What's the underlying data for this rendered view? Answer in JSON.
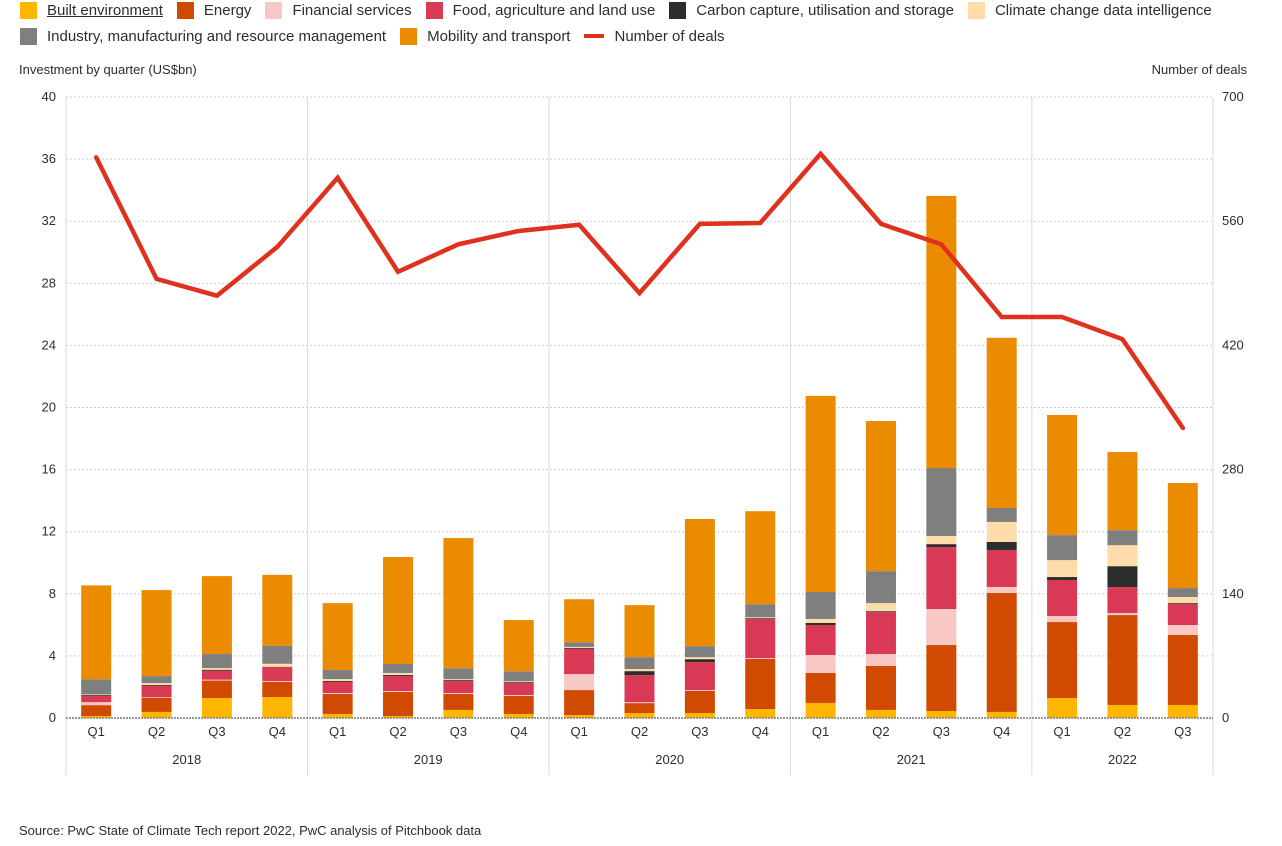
{
  "chart_data": {
    "type": "bar",
    "subtype": "stacked-bar-with-line",
    "left_axis_title": "Investment by quarter (US$bn)",
    "right_axis_title": "Number of deals",
    "ylim": [
      0,
      40
    ],
    "yticks": [
      0,
      4,
      8,
      12,
      16,
      20,
      24,
      28,
      32,
      36,
      40
    ],
    "y2lim": [
      0,
      700
    ],
    "y2ticks": [
      0,
      140,
      280,
      420,
      560,
      700
    ],
    "grid": true,
    "legend_placement": "top",
    "years": [
      "2018",
      "2019",
      "2020",
      "2021",
      "2022"
    ],
    "year_quarter_counts": [
      4,
      4,
      4,
      4,
      3
    ],
    "categories": [
      "Q1",
      "Q2",
      "Q3",
      "Q4",
      "Q1",
      "Q2",
      "Q3",
      "Q4",
      "Q1",
      "Q2",
      "Q3",
      "Q4",
      "Q1",
      "Q2",
      "Q3",
      "Q4",
      "Q1",
      "Q2",
      "Q3"
    ],
    "series": [
      {
        "name": "Built environment",
        "color": "#FFB600",
        "values": [
          0.13,
          0.39,
          1.29,
          1.35,
          0.26,
          0.13,
          0.52,
          0.26,
          0.19,
          0.32,
          0.32,
          0.58,
          0.97,
          0.52,
          0.45,
          0.39,
          1.29,
          0.84,
          0.84
        ]
      },
      {
        "name": "Energy",
        "color": "#D04A02",
        "values": [
          0.7,
          0.92,
          1.12,
          0.97,
          1.29,
          1.55,
          1.03,
          1.16,
          1.61,
          0.64,
          1.42,
          3.22,
          1.93,
          2.83,
          4.25,
          7.66,
          4.89,
          5.79,
          4.51
        ]
      },
      {
        "name": "Financial services",
        "color": "#F7C8C4",
        "values": [
          0.19,
          0.04,
          0.06,
          0.06,
          0.06,
          0.06,
          0.06,
          0.06,
          1.03,
          0.06,
          0.06,
          0.06,
          1.16,
          0.77,
          2.32,
          0.39,
          0.39,
          0.13,
          0.64
        ]
      },
      {
        "name": "Food, agriculture and land use",
        "color": "#D93954",
        "values": [
          0.41,
          0.71,
          0.58,
          0.9,
          0.71,
          0.97,
          0.77,
          0.77,
          1.63,
          1.74,
          1.8,
          2.51,
          1.93,
          2.7,
          3.99,
          2.38,
          2.32,
          1.67,
          1.35
        ]
      },
      {
        "name": "Carbon capture, utilisation and storage",
        "color": "#2D2D2D",
        "values": [
          0.05,
          0.06,
          0.06,
          0.02,
          0.06,
          0.06,
          0.06,
          0.06,
          0.06,
          0.26,
          0.19,
          0.06,
          0.13,
          0.06,
          0.19,
          0.52,
          0.19,
          1.35,
          0.06
        ]
      },
      {
        "name": "Climate change data intelligence",
        "color": "#FFDCA9",
        "values": [
          0.04,
          0.13,
          0.11,
          0.19,
          0.13,
          0.13,
          0.06,
          0.06,
          0.06,
          0.13,
          0.13,
          0.06,
          0.26,
          0.52,
          0.52,
          1.29,
          1.09,
          1.35,
          0.39
        ]
      },
      {
        "name": "Industry, manufacturing and resource management",
        "color": "#7F7F7F",
        "values": [
          0.97,
          0.45,
          0.9,
          1.16,
          0.58,
          0.58,
          0.71,
          0.64,
          0.3,
          0.77,
          0.71,
          0.84,
          1.74,
          2.06,
          4.38,
          0.9,
          1.61,
          0.97,
          0.58
        ]
      },
      {
        "name": "Mobility and transport",
        "color": "#EB8C00",
        "values": [
          6.05,
          5.54,
          5.02,
          4.57,
          4.31,
          6.89,
          8.38,
          3.3,
          2.77,
          3.35,
          8.19,
          5.99,
          12.63,
          9.67,
          17.53,
          10.96,
          7.74,
          5.03,
          6.77
        ]
      }
    ],
    "line": {
      "name": "Number of deals",
      "color": "#E0301E",
      "axis": "right",
      "values": [
        632,
        495,
        476,
        531,
        609,
        503,
        534,
        549,
        556,
        479,
        557,
        558,
        636,
        557,
        534,
        452,
        452,
        427,
        327
      ]
    }
  },
  "source": "Source: PwC State of Climate Tech report 2022, PwC analysis of Pitchbook data"
}
